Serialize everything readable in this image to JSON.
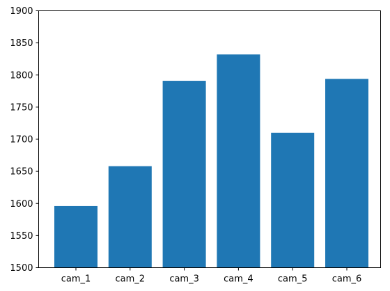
{
  "chart_data": {
    "type": "bar",
    "title": "",
    "xlabel": "",
    "ylabel": "",
    "categories": [
      "cam_1",
      "cam_2",
      "cam_3",
      "cam_4",
      "cam_5",
      "cam_6"
    ],
    "values": [
      1596,
      1658,
      1791,
      1832,
      1710,
      1794
    ],
    "ylim": [
      1500,
      1900
    ],
    "yticks": [
      1500,
      1550,
      1600,
      1650,
      1700,
      1750,
      1800,
      1850,
      1900
    ],
    "grid": false,
    "legend": "none",
    "bar_color": "#1f77b4"
  }
}
